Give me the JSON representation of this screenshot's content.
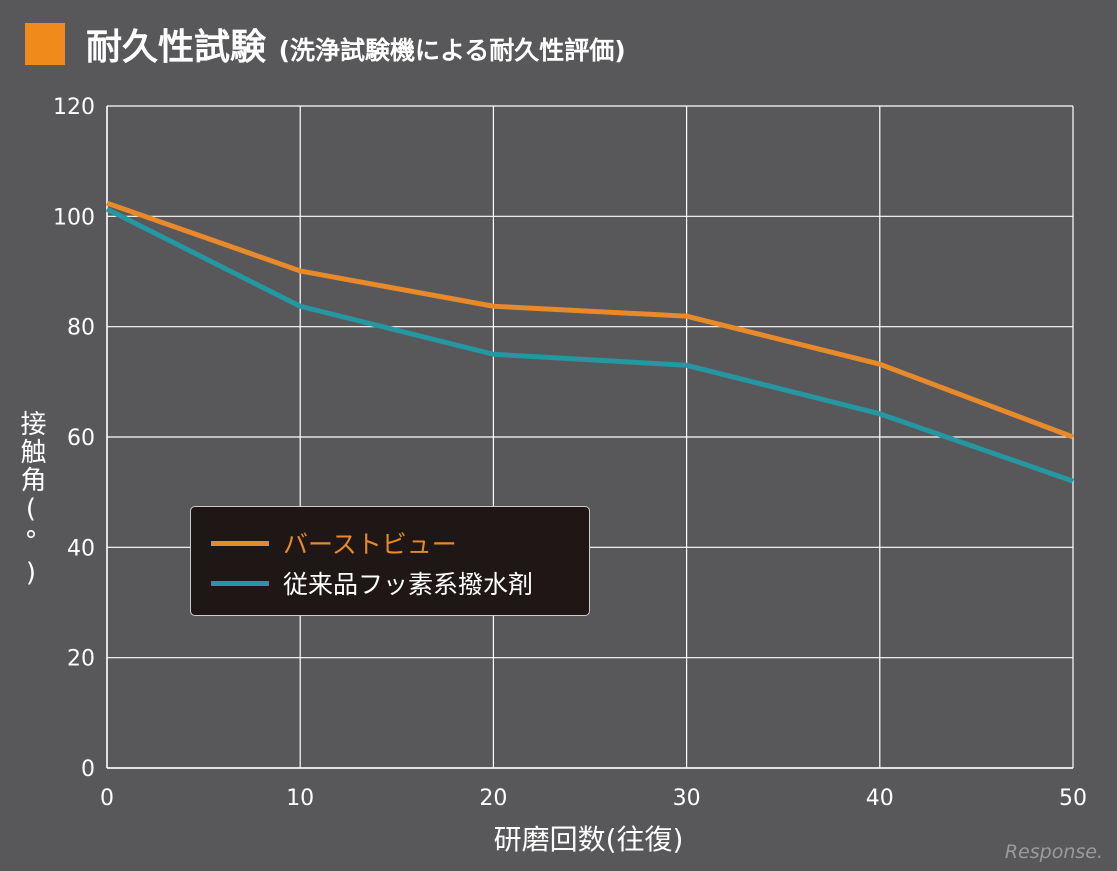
{
  "chart_data": {
    "type": "line",
    "title": "耐久性試験",
    "subtitle": "(洗浄試験機による耐久性評価)",
    "xlabel": "研磨回数(往復)",
    "ylabel": "接触角(°)",
    "x": [
      0,
      10,
      20,
      30,
      40,
      50
    ],
    "xlim": [
      0,
      50
    ],
    "ylim": [
      0,
      120
    ],
    "xticks": [
      "0",
      "10",
      "20",
      "30",
      "40",
      "50"
    ],
    "yticks": [
      "0",
      "20",
      "40",
      "60",
      "80",
      "100",
      "120"
    ],
    "grid": true,
    "legend_position": "center-left",
    "series": [
      {
        "name": "バーストビュー",
        "color": "#e8892a",
        "values": [
          102.4,
          90.1,
          83.7,
          81.9,
          73.2,
          60
        ]
      },
      {
        "name": "従来品フッ素系撥水剤",
        "color": "#2597a0",
        "values": [
          101.3,
          83.7,
          75,
          73,
          64.2,
          52
        ]
      }
    ]
  },
  "colors": {
    "accent": "#ef8a1b",
    "background": "#58575a"
  },
  "watermark": "Response."
}
